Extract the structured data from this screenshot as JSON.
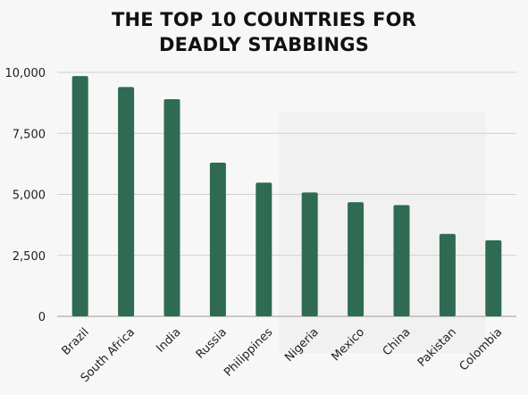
{
  "chart_data": {
    "type": "bar",
    "title_lines": [
      "THE TOP 10 COUNTRIES FOR",
      "DEADLY STABBINGS"
    ],
    "xlabel": "",
    "ylabel": "",
    "categories": [
      "Brazil",
      "South Africa",
      "India",
      "Russia",
      "Philippines",
      "Nigeria",
      "Mexico",
      "China",
      "Pakistan",
      "Colombia"
    ],
    "values": [
      9850,
      9400,
      8900,
      6300,
      5480,
      5080,
      4680,
      4560,
      3380,
      3120
    ],
    "yticks": [
      "0",
      "2,500",
      "5,000",
      "7,500",
      "10,000"
    ],
    "ytick_values": [
      0,
      2500,
      5000,
      7500,
      10000
    ],
    "ylim": [
      0,
      10000
    ],
    "grid": true,
    "legend": "none",
    "bar_color": "#2e6b52",
    "grid_color": "#cfcfcf"
  }
}
